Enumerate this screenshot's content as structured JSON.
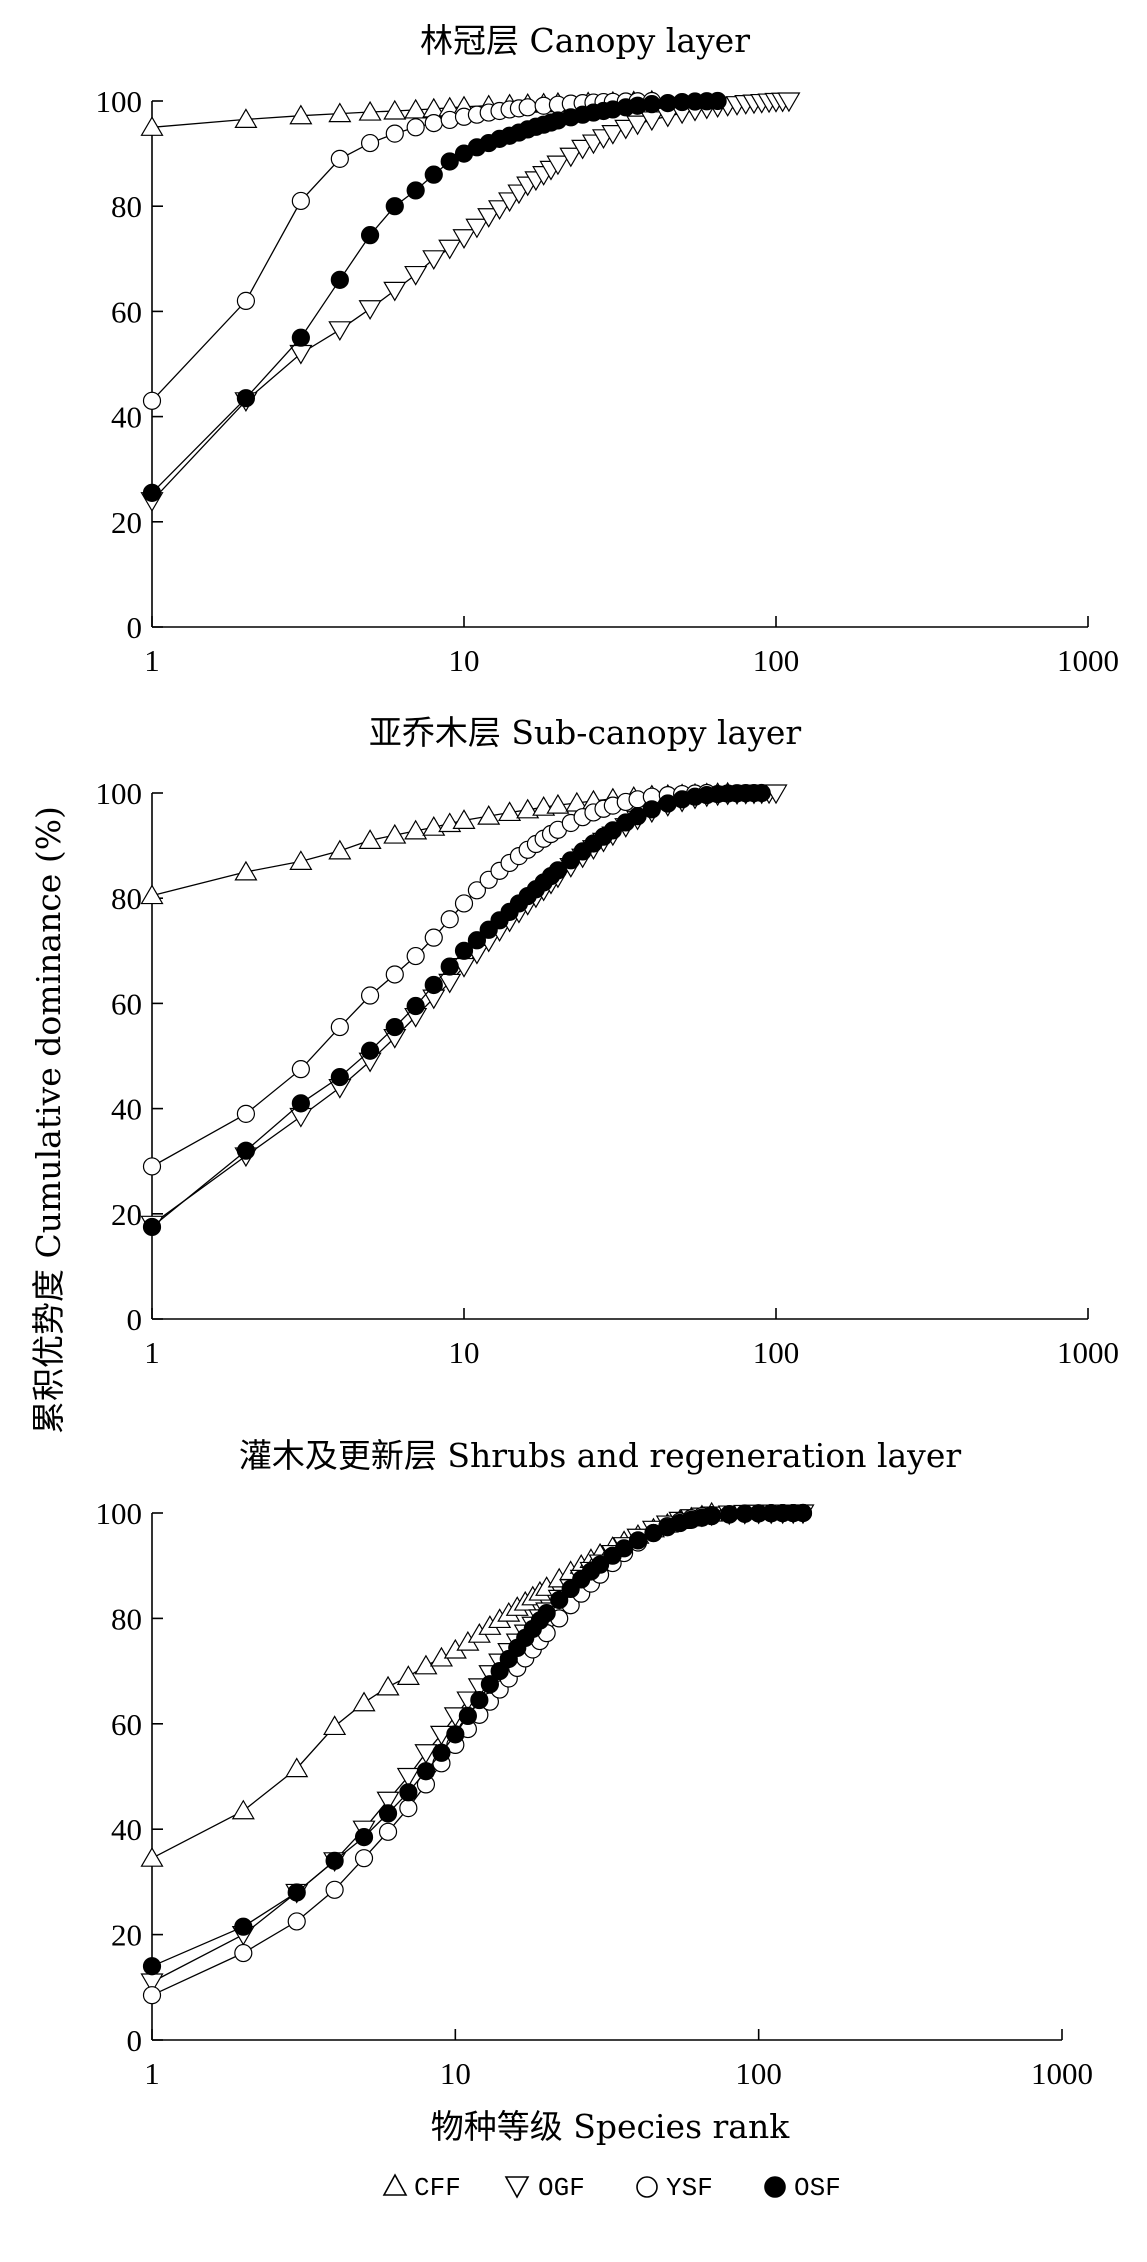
{
  "y_axis_label": "累积优势度 Cumulative dominance (%)",
  "x_axis_label": "物种等级 Species rank",
  "legend": [
    {
      "key": "CFF",
      "label": "CFF",
      "marker": "triangle-up-open"
    },
    {
      "key": "OGF",
      "label": "OGF",
      "marker": "triangle-down-open"
    },
    {
      "key": "YSF",
      "label": "YSF",
      "marker": "circle-open"
    },
    {
      "key": "OSF",
      "label": "OSF",
      "marker": "circle-filled"
    }
  ],
  "chart_data": [
    {
      "type": "line",
      "title": "林冠层 Canopy layer",
      "xscale": "log",
      "xlim": [
        1,
        1000
      ],
      "ylim": [
        0,
        100
      ],
      "xticks": [
        "1",
        "10",
        "100",
        "1000"
      ],
      "yticks": [
        "0",
        "20",
        "40",
        "60",
        "80",
        "100"
      ],
      "grid": false,
      "series": [
        {
          "name": "CFF",
          "x": [
            1,
            2,
            3,
            4,
            5,
            6,
            7,
            8,
            9,
            10,
            12,
            14,
            16,
            18,
            20,
            25,
            30,
            35,
            40
          ],
          "y": [
            95,
            96.5,
            97.2,
            97.6,
            97.9,
            98.1,
            98.3,
            98.5,
            98.7,
            98.9,
            99.1,
            99.3,
            99.4,
            99.5,
            99.6,
            99.7,
            99.8,
            99.9,
            100
          ]
        },
        {
          "name": "OGF",
          "x": [
            1,
            2,
            3,
            4,
            5,
            6,
            7,
            8,
            9,
            10,
            11,
            12,
            13,
            14,
            15,
            16,
            17,
            18,
            19,
            20,
            22,
            24,
            26,
            28,
            30,
            33,
            36,
            40,
            45,
            50,
            55,
            60,
            65,
            70,
            75,
            80,
            85,
            90,
            95,
            100,
            105,
            110
          ],
          "y": [
            24,
            43,
            52,
            56.5,
            60.5,
            64,
            67,
            70,
            72,
            74,
            76,
            78,
            79.5,
            81,
            82.5,
            84,
            85,
            86,
            87,
            88,
            89.5,
            91,
            92,
            93,
            93.8,
            94.8,
            95.6,
            96.4,
            97.1,
            97.7,
            98.2,
            98.6,
            98.9,
            99.1,
            99.3,
            99.5,
            99.6,
            99.7,
            99.8,
            99.9,
            99.95,
            100
          ]
        },
        {
          "name": "YSF",
          "x": [
            1,
            2,
            3,
            4,
            5,
            6,
            7,
            8,
            9,
            10,
            11,
            12,
            13,
            14,
            15,
            16,
            18,
            20,
            22,
            24,
            26,
            28,
            30,
            33,
            36,
            40
          ],
          "y": [
            43,
            62,
            81,
            89,
            92,
            93.8,
            95,
            95.8,
            96.4,
            97,
            97.4,
            97.8,
            98.1,
            98.4,
            98.6,
            98.8,
            99.1,
            99.3,
            99.5,
            99.6,
            99.7,
            99.8,
            99.85,
            99.9,
            99.95,
            100
          ]
        },
        {
          "name": "OSF",
          "x": [
            1,
            2,
            3,
            4,
            5,
            6,
            7,
            8,
            9,
            10,
            11,
            12,
            13,
            14,
            15,
            16,
            17,
            18,
            19,
            20,
            22,
            24,
            26,
            28,
            30,
            33,
            36,
            40,
            45,
            50,
            55,
            60,
            65
          ],
          "y": [
            25.5,
            43.5,
            55,
            66,
            74.5,
            80,
            83,
            86,
            88.5,
            90,
            91.2,
            92,
            92.8,
            93.4,
            94,
            94.6,
            95.1,
            95.5,
            95.9,
            96.3,
            96.9,
            97.4,
            97.8,
            98.1,
            98.4,
            98.8,
            99.1,
            99.4,
            99.6,
            99.8,
            99.9,
            99.95,
            100
          ]
        }
      ]
    },
    {
      "type": "line",
      "title": "亚乔木层 Sub-canopy layer",
      "xscale": "log",
      "xlim": [
        1,
        1000
      ],
      "ylim": [
        0,
        100
      ],
      "xticks": [
        "1",
        "10",
        "100",
        "1000"
      ],
      "yticks": [
        "0",
        "20",
        "40",
        "60",
        "80",
        "100"
      ],
      "grid": false,
      "series": [
        {
          "name": "CFF",
          "x": [
            1,
            2,
            3,
            4,
            5,
            6,
            7,
            8,
            9,
            10,
            12,
            14,
            16,
            18,
            20,
            23,
            26,
            30,
            35,
            40,
            45,
            50,
            55,
            60,
            65,
            70
          ],
          "y": [
            80.5,
            85,
            87,
            89,
            91,
            92,
            92.8,
            93.5,
            94.2,
            94.8,
            95.6,
            96.3,
            96.8,
            97.3,
            97.7,
            98.1,
            98.5,
            98.9,
            99.2,
            99.5,
            99.6,
            99.7,
            99.8,
            99.9,
            99.95,
            100
          ]
        },
        {
          "name": "OGF",
          "x": [
            1,
            2,
            3,
            4,
            5,
            6,
            7,
            8,
            9,
            10,
            11,
            12,
            13,
            14,
            15,
            16,
            17,
            18,
            19,
            20,
            22,
            24,
            26,
            28,
            30,
            33,
            36,
            40,
            45,
            50,
            55,
            60,
            65,
            70,
            75,
            80,
            85,
            90,
            95,
            100
          ],
          "y": [
            18,
            31,
            38.5,
            44,
            49,
            53.5,
            57.5,
            61,
            64,
            67,
            69.5,
            71.8,
            73.8,
            75.6,
            77.3,
            78.8,
            80.2,
            81.5,
            82.8,
            84,
            86,
            87.8,
            89.4,
            90.8,
            92,
            93.6,
            95,
            96.4,
            97.6,
            98.4,
            99,
            99.4,
            99.6,
            99.75,
            99.85,
            99.9,
            99.95,
            99.97,
            99.99,
            100
          ]
        },
        {
          "name": "YSF",
          "x": [
            1,
            2,
            3,
            4,
            5,
            6,
            7,
            8,
            9,
            10,
            11,
            12,
            13,
            14,
            15,
            16,
            17,
            18,
            19,
            20,
            22,
            24,
            26,
            28,
            30,
            33,
            36,
            40,
            45,
            50,
            55,
            60
          ],
          "y": [
            29,
            39,
            47.5,
            55.5,
            61.5,
            65.5,
            69,
            72.5,
            76,
            79,
            81.5,
            83.5,
            85.2,
            86.7,
            88,
            89.2,
            90.3,
            91.3,
            92.2,
            93,
            94.3,
            95.4,
            96.3,
            97,
            97.6,
            98.3,
            98.8,
            99.3,
            99.6,
            99.8,
            99.9,
            100
          ]
        },
        {
          "name": "OSF",
          "x": [
            1,
            2,
            3,
            4,
            5,
            6,
            7,
            8,
            9,
            10,
            11,
            12,
            13,
            14,
            15,
            16,
            17,
            18,
            19,
            20,
            22,
            24,
            26,
            28,
            30,
            33,
            36,
            40,
            45,
            50,
            55,
            60,
            65,
            70,
            75,
            80,
            85,
            90
          ],
          "y": [
            17.5,
            32,
            41,
            46,
            51,
            55.5,
            59.5,
            63.5,
            67,
            70,
            72,
            74,
            75.8,
            77.4,
            79,
            80.4,
            81.7,
            83,
            84.2,
            85.3,
            87.2,
            88.9,
            90.4,
            91.7,
            92.9,
            94.4,
            95.6,
            96.9,
            98,
            98.8,
            99.3,
            99.6,
            99.8,
            99.9,
            99.95,
            99.97,
            99.99,
            100
          ]
        }
      ]
    },
    {
      "type": "line",
      "title": "灌木及更新层 Shrubs and regeneration layer",
      "xscale": "log",
      "xlim": [
        1,
        1000
      ],
      "ylim": [
        0,
        100
      ],
      "xticks": [
        "1",
        "10",
        "100",
        "1000"
      ],
      "yticks": [
        "0",
        "20",
        "40",
        "60",
        "80",
        "100"
      ],
      "grid": false,
      "series": [
        {
          "name": "CFF",
          "x": [
            1,
            2,
            3,
            4,
            5,
            6,
            7,
            8,
            9,
            10,
            11,
            12,
            13,
            14,
            15,
            16,
            17,
            18,
            19,
            20,
            22,
            24,
            26,
            28,
            30,
            33,
            36,
            40,
            45,
            50,
            55,
            60,
            65,
            70
          ],
          "y": [
            34.5,
            43.5,
            51.5,
            59.5,
            64,
            67,
            69,
            71,
            72.5,
            74,
            75.5,
            77,
            78.5,
            79.8,
            81,
            82.1,
            83.1,
            84.1,
            85,
            85.9,
            87.5,
            88.9,
            90.1,
            91.2,
            92.2,
            93.5,
            94.6,
            95.8,
            97,
            97.9,
            98.6,
            99.1,
            99.5,
            100
          ]
        },
        {
          "name": "OGF",
          "x": [
            1,
            2,
            3,
            4,
            5,
            6,
            7,
            8,
            9,
            10,
            11,
            12,
            13,
            14,
            15,
            16,
            17,
            18,
            19,
            20,
            22,
            24,
            26,
            28,
            30,
            33,
            36,
            40,
            45,
            50,
            55,
            60,
            65,
            70,
            80,
            90,
            100,
            110,
            120,
            130,
            140
          ],
          "y": [
            11,
            20,
            28,
            34,
            40,
            45.5,
            50,
            54.5,
            58,
            61.5,
            64.5,
            67,
            69.5,
            71.7,
            73.7,
            75.5,
            77.2,
            78.7,
            80.1,
            81.4,
            83.8,
            85.8,
            87.6,
            89.1,
            90.5,
            92.3,
            93.8,
            95.4,
            96.9,
            97.9,
            98.6,
            99.1,
            99.4,
            99.6,
            99.8,
            99.9,
            99.95,
            99.97,
            99.98,
            99.99,
            100
          ]
        },
        {
          "name": "YSF",
          "x": [
            1,
            2,
            3,
            4,
            5,
            6,
            7,
            8,
            9,
            10,
            11,
            12,
            13,
            14,
            15,
            16,
            17,
            18,
            19,
            20,
            22,
            24,
            26,
            28,
            30,
            33,
            36,
            40,
            45,
            50,
            55,
            60,
            65,
            70,
            80,
            90,
            100,
            110,
            120,
            130,
            140
          ],
          "y": [
            8.5,
            16.5,
            22.5,
            28.5,
            34.5,
            39.5,
            44,
            48.5,
            52.5,
            56,
            59,
            61.7,
            64.2,
            66.5,
            68.6,
            70.6,
            72.4,
            74.1,
            75.7,
            77.2,
            80,
            82.5,
            84.7,
            86.6,
            88.3,
            90.5,
            92.4,
            94.4,
            96.2,
            97.5,
            98.4,
            99,
            99.4,
            99.6,
            99.8,
            99.9,
            99.95,
            99.97,
            99.98,
            99.99,
            100
          ]
        },
        {
          "name": "OSF",
          "x": [
            1,
            2,
            3,
            4,
            5,
            6,
            7,
            8,
            9,
            10,
            11,
            12,
            13,
            14,
            15,
            16,
            17,
            18,
            19,
            20,
            22,
            24,
            26,
            28,
            30,
            33,
            36,
            40,
            45,
            50,
            55,
            60,
            65,
            70,
            80,
            90,
            100,
            110,
            120,
            130,
            140
          ],
          "y": [
            14,
            21.5,
            28,
            34,
            38.5,
            43,
            47,
            51,
            54.5,
            58,
            61.5,
            64.5,
            67.5,
            70,
            72.3,
            74.4,
            76.3,
            78,
            79.6,
            81,
            83.5,
            85.6,
            87.4,
            88.9,
            90.2,
            91.9,
            93.3,
            94.8,
            96.2,
            97.3,
            98.1,
            98.7,
            99.1,
            99.4,
            99.7,
            99.85,
            99.92,
            99.96,
            99.98,
            99.99,
            100
          ]
        }
      ]
    }
  ]
}
